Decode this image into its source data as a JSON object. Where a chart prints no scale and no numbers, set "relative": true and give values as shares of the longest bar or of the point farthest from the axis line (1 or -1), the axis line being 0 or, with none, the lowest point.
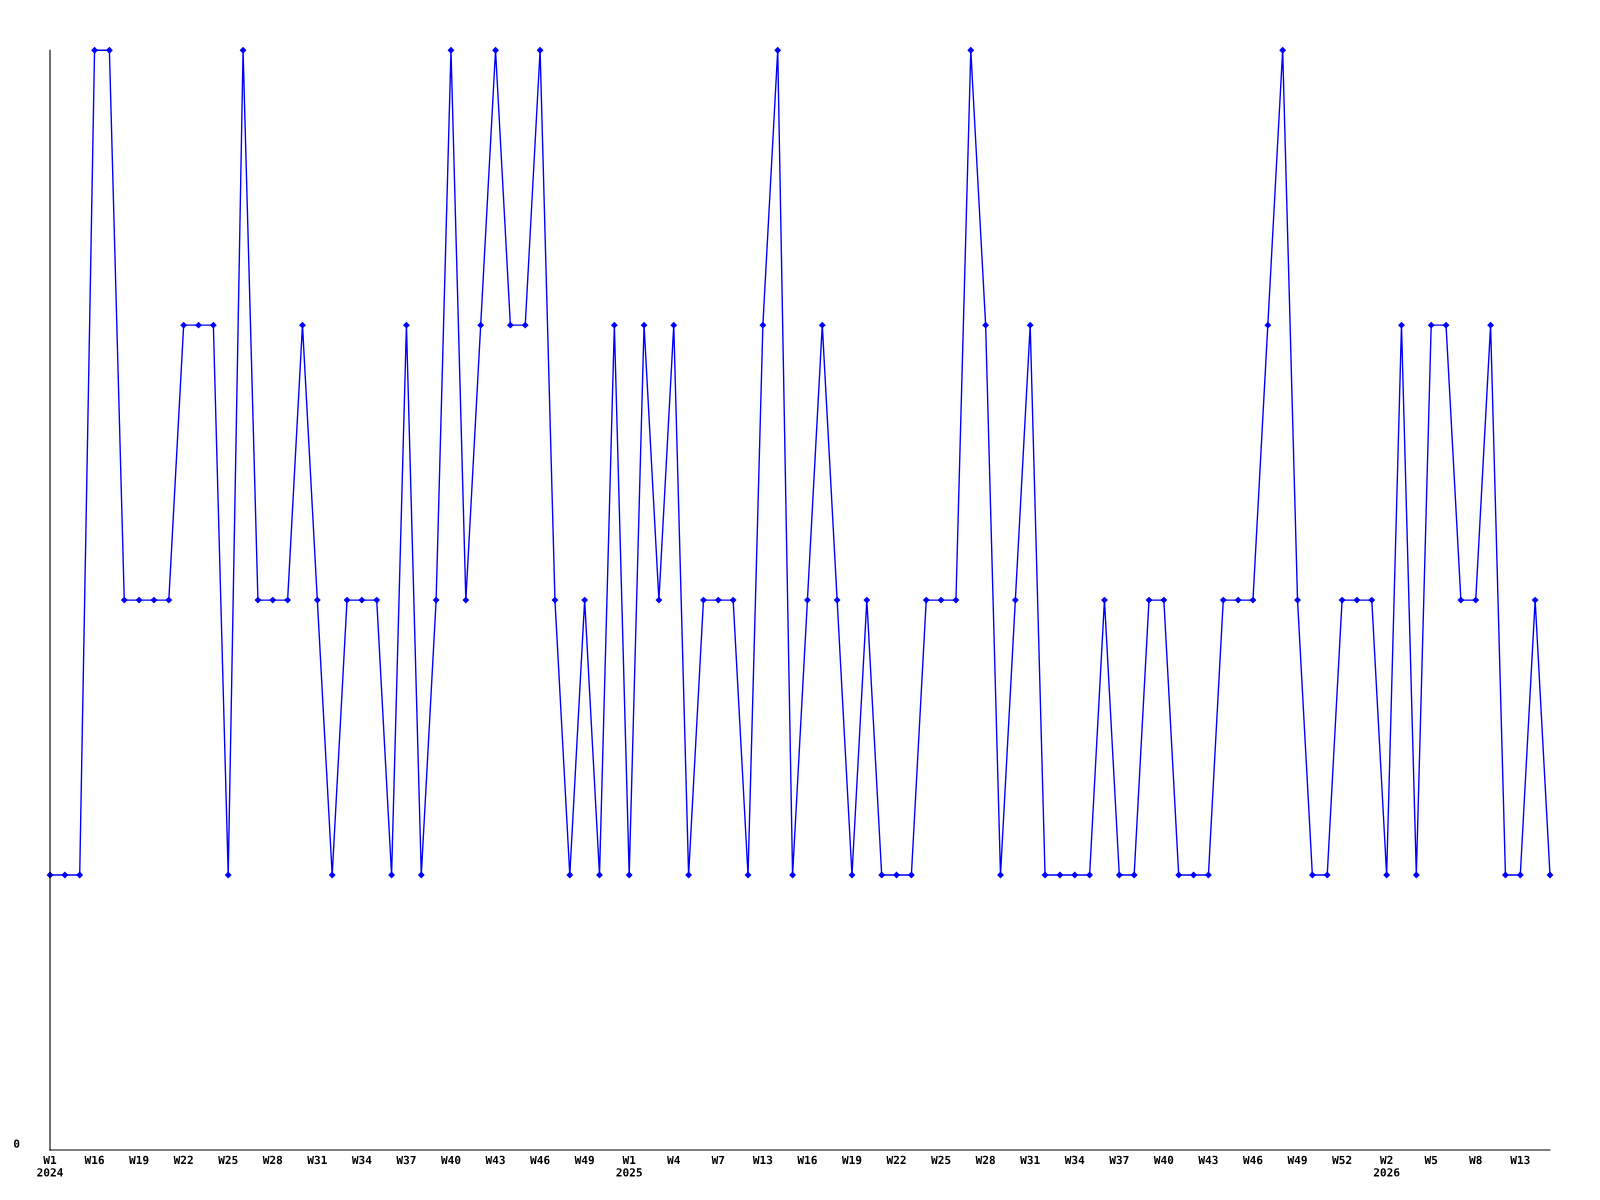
{
  "chart_data": {
    "type": "line",
    "relative": true,
    "marker": "diamond",
    "categories": [
      "W1\n2024",
      null,
      null,
      "W16",
      null,
      null,
      "W19",
      null,
      null,
      "W22",
      null,
      null,
      "W25",
      null,
      null,
      "W28",
      null,
      null,
      "W31",
      null,
      null,
      "W34",
      null,
      null,
      "W37",
      null,
      null,
      "W40",
      null,
      null,
      "W43",
      null,
      null,
      "W46",
      null,
      null,
      "W49",
      null,
      null,
      "W1\n2025",
      null,
      null,
      "W4",
      null,
      null,
      "W7",
      null,
      null,
      "W13",
      null,
      null,
      "W16",
      null,
      null,
      "W19",
      null,
      null,
      "W22",
      null,
      null,
      "W25",
      null,
      null,
      "W28",
      null,
      null,
      "W31",
      null,
      null,
      "W34",
      null,
      null,
      "W37",
      null,
      null,
      "W40",
      null,
      null,
      "W43",
      null,
      null,
      "W46",
      null,
      null,
      "W49",
      null,
      null,
      "W52",
      null,
      null,
      "W2\n2026",
      null,
      null,
      "W5",
      null,
      null,
      "W8",
      null,
      null,
      "W13",
      null,
      null
    ],
    "series": [
      {
        "color": "#0000ff",
        "values": [
          0.25,
          0.25,
          0.25,
          1,
          1,
          0.5,
          0.5,
          0.5,
          0.5,
          0.75,
          0.75,
          0.75,
          0.25,
          1,
          0.5,
          0.5,
          0.5,
          0.75,
          0.5,
          0.25,
          0.5,
          0.5,
          0.5,
          0.25,
          0.75,
          0.25,
          0.5,
          1,
          0.5,
          0.75,
          1,
          0.75,
          0.75,
          1,
          0.5,
          0.25,
          0.5,
          0.25,
          0.75,
          0.25,
          0.75,
          0.5,
          0.75,
          0.25,
          0.5,
          0.5,
          0.5,
          0.25,
          0.75,
          1,
          0.25,
          0.5,
          0.75,
          0.5,
          0.25,
          0.5,
          0.25,
          0.25,
          0.25,
          0.5,
          0.5,
          0.5,
          1,
          0.75,
          0.25,
          0.5,
          0.75,
          0.25,
          0.25,
          0.25,
          0.25,
          0.5,
          0.25,
          0.25,
          0.5,
          0.5,
          0.25,
          0.25,
          0.25,
          0.5,
          0.5,
          0.5,
          0.75,
          1,
          0.5,
          0.25,
          0.25,
          0.5,
          0.5,
          0.5,
          0.25,
          0.75,
          0.25,
          0.75,
          0.75,
          0.5,
          0.5,
          0.75,
          0.25,
          0.25,
          0.5,
          0.25
        ]
      }
    ],
    "annotations": [
      "0"
    ]
  }
}
